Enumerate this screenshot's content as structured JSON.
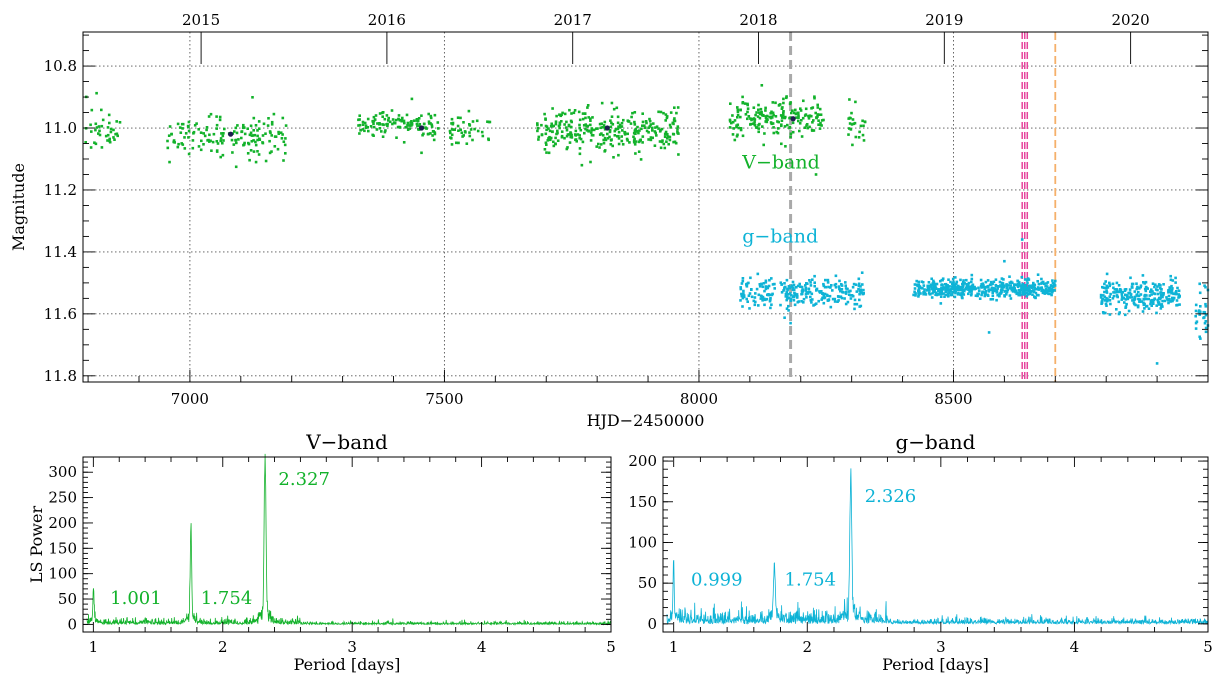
{
  "colors": {
    "v_band": "#13b22b",
    "g_band": "#0eb3d6",
    "dark_point": "#1d1d4f",
    "gray_dashed": "#a9a9a9",
    "pink_dashed": "#e6449c",
    "orange_dashed": "#f5b06a"
  },
  "chart_data": [
    {
      "id": "lightcurve",
      "type": "scatter",
      "title": "",
      "xlabel": "HJD−2450000",
      "ylabel": "Magnitude",
      "xlim": [
        6790,
        9000
      ],
      "ylim": [
        11.82,
        10.69
      ],
      "y_reversed": true,
      "grid": true,
      "x_ticks": [
        7000,
        7500,
        8000,
        8500
      ],
      "x_tick_labels": [
        "7000",
        "7500",
        "8000",
        "8500"
      ],
      "y_ticks": [
        10.8,
        11.0,
        11.2,
        11.4,
        11.6,
        11.8
      ],
      "y_tick_labels": [
        "10.8",
        "11.0",
        "11.2",
        "11.4",
        "11.6",
        "11.8"
      ],
      "top_axis": {
        "ticks": [
          7022,
          7387,
          7752,
          8117,
          8482,
          8848
        ],
        "labels": [
          "2015",
          "2016",
          "2017",
          "2018",
          "2019",
          "2020"
        ]
      },
      "series_labels": [
        {
          "text": "V−band",
          "x": 8085,
          "y": 11.13,
          "color_key": "v_band"
        },
        {
          "text": "g−band",
          "x": 8085,
          "y": 11.37,
          "color_key": "g_band"
        }
      ],
      "segments": [
        {
          "band": "V",
          "x0": 6795,
          "x1": 6865,
          "mean": 11.01,
          "spread": 0.05,
          "n": 40
        },
        {
          "band": "V",
          "x0": 6955,
          "x1": 7190,
          "mean": 11.03,
          "spread": 0.04,
          "n": 160
        },
        {
          "band": "V",
          "x0": 7330,
          "x1": 7490,
          "mean": 10.99,
          "spread": 0.025,
          "n": 130
        },
        {
          "band": "V",
          "x0": 7510,
          "x1": 7590,
          "mean": 11.01,
          "spread": 0.03,
          "n": 45
        },
        {
          "band": "V",
          "x0": 7680,
          "x1": 7960,
          "mean": 11.01,
          "spread": 0.045,
          "n": 320
        },
        {
          "band": "V",
          "x0": 8060,
          "x1": 8245,
          "mean": 10.97,
          "spread": 0.035,
          "n": 200
        },
        {
          "band": "V",
          "x0": 8290,
          "x1": 8330,
          "mean": 10.98,
          "spread": 0.03,
          "n": 25
        },
        {
          "band": "g",
          "x0": 8080,
          "x1": 8150,
          "mean": 11.53,
          "spread": 0.035,
          "n": 80
        },
        {
          "band": "g",
          "x0": 8160,
          "x1": 8330,
          "mean": 11.53,
          "spread": 0.03,
          "n": 200
        },
        {
          "band": "g",
          "x0": 8420,
          "x1": 8700,
          "mean": 11.52,
          "spread": 0.018,
          "n": 500
        },
        {
          "band": "g",
          "x0": 8790,
          "x1": 8945,
          "mean": 11.54,
          "spread": 0.03,
          "n": 260
        },
        {
          "band": "g",
          "x0": 8975,
          "x1": 9000,
          "mean": 11.6,
          "spread": 0.05,
          "n": 30
        }
      ],
      "outliers": [
        {
          "band": "V",
          "x": 6960,
          "y": 11.11
        },
        {
          "band": "V",
          "x": 7130,
          "y": 11.11
        },
        {
          "band": "V",
          "x": 7455,
          "y": 11.08
        },
        {
          "band": "V",
          "x": 8230,
          "y": 11.15
        },
        {
          "band": "V",
          "x": 7770,
          "y": 11.12
        },
        {
          "band": "g",
          "x": 8570,
          "y": 11.66
        },
        {
          "band": "g",
          "x": 8600,
          "y": 11.43
        },
        {
          "band": "g",
          "x": 8635,
          "y": 11.36
        },
        {
          "band": "g",
          "x": 8180,
          "y": 11.63
        },
        {
          "band": "g",
          "x": 8900,
          "y": 11.76
        },
        {
          "band": "g",
          "x": 8985,
          "y": 11.68
        }
      ],
      "highlight_points": [
        {
          "x": 7080,
          "y": 11.02
        },
        {
          "x": 7455,
          "y": 11.0
        },
        {
          "x": 7820,
          "y": 11.0
        },
        {
          "x": 8185,
          "y": 10.97
        }
      ],
      "vertical_lines": [
        {
          "x": 8180,
          "color_key": "gray_dashed",
          "width": 3,
          "dash": "9 5"
        },
        {
          "x": 8635,
          "color_key": "pink_dashed",
          "width": 1.5,
          "dash": "7 3"
        },
        {
          "x": 8640,
          "color_key": "pink_dashed",
          "width": 1.5,
          "dash": "7 3"
        },
        {
          "x": 8645,
          "color_key": "pink_dashed",
          "width": 1.5,
          "dash": "7 3"
        },
        {
          "x": 8700,
          "color_key": "orange_dashed",
          "width": 1.8,
          "dash": "8 4"
        }
      ]
    },
    {
      "id": "periodogram_v",
      "type": "line",
      "title": "V−band",
      "xlabel": "Period [days]",
      "ylabel": "LS Power",
      "xlim": [
        0.92,
        5.0
      ],
      "ylim": [
        -15,
        330
      ],
      "color_key": "v_band",
      "x_ticks": [
        1,
        2,
        3,
        4,
        5
      ],
      "x_tick_labels": [
        "1",
        "2",
        "3",
        "4",
        "5"
      ],
      "y_ticks": [
        0,
        50,
        100,
        150,
        200,
        250,
        300
      ],
      "y_tick_labels": [
        "0",
        "50",
        "100",
        "150",
        "200",
        "250",
        "300"
      ],
      "noise_level": 6,
      "peaks": [
        {
          "x": 1.001,
          "height": 68,
          "width": 0.006
        },
        {
          "x": 1.754,
          "height": 180,
          "width": 0.008
        },
        {
          "x": 2.327,
          "height": 312,
          "width": 0.01
        }
      ],
      "annotations": [
        {
          "text": "1.001",
          "x": 1.13,
          "y": 40
        },
        {
          "text": "1.754",
          "x": 1.83,
          "y": 40
        },
        {
          "text": "2.327",
          "x": 2.43,
          "y": 275
        }
      ]
    },
    {
      "id": "periodogram_g",
      "type": "line",
      "title": "g−band",
      "xlabel": "Period [days]",
      "ylabel": "",
      "xlim": [
        0.92,
        5.0
      ],
      "ylim": [
        -10,
        205
      ],
      "color_key": "g_band",
      "x_ticks": [
        1,
        2,
        3,
        4,
        5
      ],
      "x_tick_labels": [
        "1",
        "2",
        "3",
        "4",
        "5"
      ],
      "y_ticks": [
        0,
        50,
        100,
        150,
        200
      ],
      "y_tick_labels": [
        "0",
        "50",
        "100",
        "150",
        "200"
      ],
      "noise_level": 8,
      "peaks": [
        {
          "x": 0.999,
          "height": 70,
          "width": 0.006
        },
        {
          "x": 1.754,
          "height": 63,
          "width": 0.01
        },
        {
          "x": 2.326,
          "height": 172,
          "width": 0.01
        }
      ],
      "annotations": [
        {
          "text": "0.999",
          "x": 1.13,
          "y": 47
        },
        {
          "text": "1.754",
          "x": 1.83,
          "y": 47
        },
        {
          "text": "2.326",
          "x": 2.43,
          "y": 150
        }
      ]
    }
  ]
}
